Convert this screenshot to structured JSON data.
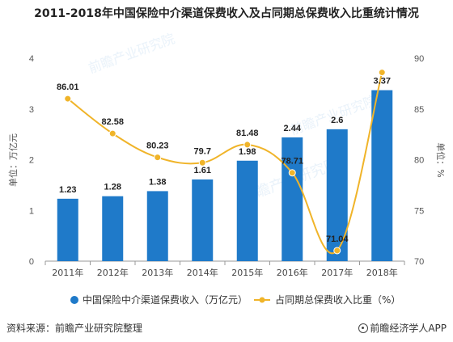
{
  "title": "2011-2018年中国保险中介渠道保费收入及占同期总保费收入比重统计情况",
  "source": "资料来源：前瞻产业研究院整理",
  "brand": "前瞻经济学人APP",
  "watermark": "前瞻产业研究院",
  "colors": {
    "bar": "#1f7ac9",
    "line": "#f0b429",
    "axis": "#999999"
  },
  "chart_data": {
    "type": "bar",
    "categories": [
      "2011年",
      "2012年",
      "2013年",
      "2014年",
      "2015年",
      "2016年",
      "2017年",
      "2018年"
    ],
    "series": [
      {
        "name": "中国保险中介渠道保费收入（万亿元）",
        "type": "bar",
        "axis": "left",
        "values": [
          1.23,
          1.28,
          1.38,
          1.61,
          1.98,
          2.44,
          2.6,
          3.37
        ],
        "labels": [
          "1.23",
          "1.28",
          "1.38",
          "1.61",
          "1.98",
          "2.44",
          "2.6",
          "3.37"
        ]
      },
      {
        "name": "占同期总保费收入比重（%）",
        "type": "line",
        "axis": "right",
        "values": [
          86.01,
          82.58,
          80.23,
          79.7,
          81.48,
          78.71,
          71.04,
          88.6
        ],
        "labels": [
          "86.01",
          "82.58",
          "80.23",
          "79.7",
          "81.48",
          "78.71",
          "71.04",
          ""
        ]
      }
    ],
    "ylabel_left": "单位：万亿元",
    "ylabel_right": "单位：%",
    "ylim_left": [
      0,
      4
    ],
    "ylim_right": [
      70,
      90
    ],
    "yticks_left": [
      "0",
      "1",
      "2",
      "3",
      "4"
    ],
    "yticks_right": [
      "70",
      "75",
      "80",
      "85",
      "90"
    ],
    "grid": false,
    "legend_position": "bottom"
  }
}
